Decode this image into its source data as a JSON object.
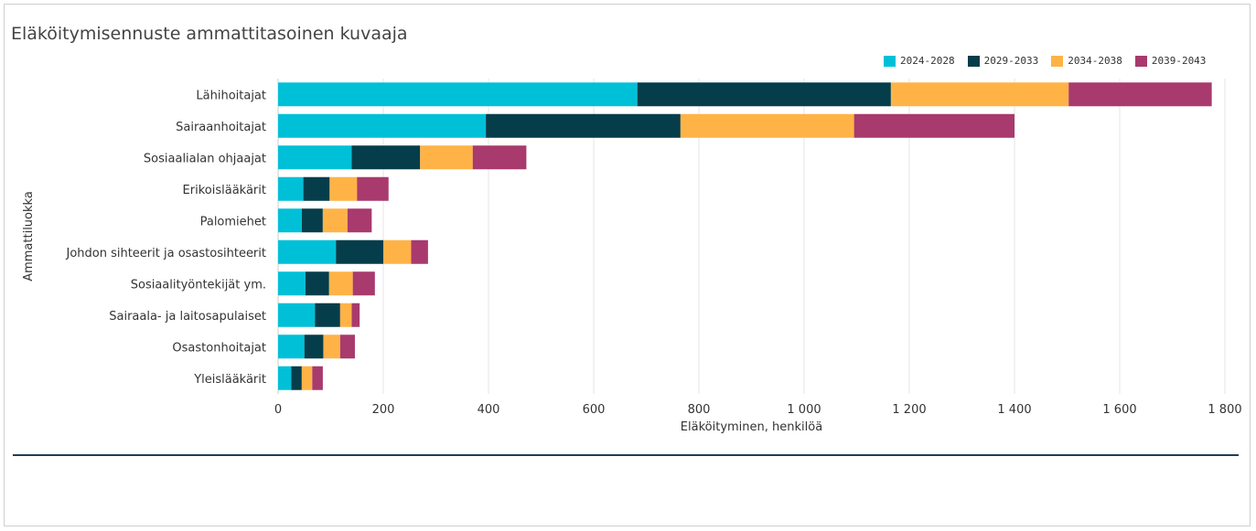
{
  "chart_data": {
    "type": "bar",
    "orientation": "horizontal",
    "stacked": true,
    "title": "Eläköitymisennuste ammattitasoinen kuvaaja",
    "xlabel": "Eläköityminen, henkilöä",
    "ylabel": "Ammattiluokka",
    "xlim": [
      0,
      1800
    ],
    "xticks": [
      0,
      200,
      400,
      600,
      800,
      1000,
      1200,
      1400,
      1600,
      1800
    ],
    "xtick_labels": [
      "0",
      "200",
      "400",
      "600",
      "800",
      "1 000",
      "1 200",
      "1 400",
      "1 600",
      "1 800"
    ],
    "grid": "vertical",
    "legend_position": "top-right",
    "categories": [
      "Lähihoitajat",
      "Sairaanhoitajat",
      "Sosiaalialan ohjaajat",
      "Erikoislääkärit",
      "Palomiehet",
      "Johdon sihteerit ja osastosihteerit",
      "Sosiaalityöntekijät ym.",
      "Sairaala- ja laitosapulaiset",
      "Osastonhoitajat",
      "Yleislääkärit"
    ],
    "series": [
      {
        "name": "2024-2028",
        "color": "#00c0d8",
        "values": [
          683,
          395,
          140,
          48,
          45,
          110,
          52,
          70,
          50,
          25
        ]
      },
      {
        "name": "2029-2033",
        "color": "#063d4a",
        "values": [
          482,
          370,
          130,
          50,
          40,
          90,
          45,
          48,
          36,
          20
        ]
      },
      {
        "name": "2034-2038",
        "color": "#ffb347",
        "values": [
          338,
          330,
          100,
          52,
          47,
          53,
          45,
          22,
          32,
          20
        ]
      },
      {
        "name": "2039-2043",
        "color": "#a83a6d",
        "values": [
          272,
          305,
          102,
          60,
          46,
          32,
          42,
          15,
          28,
          20
        ]
      }
    ]
  }
}
